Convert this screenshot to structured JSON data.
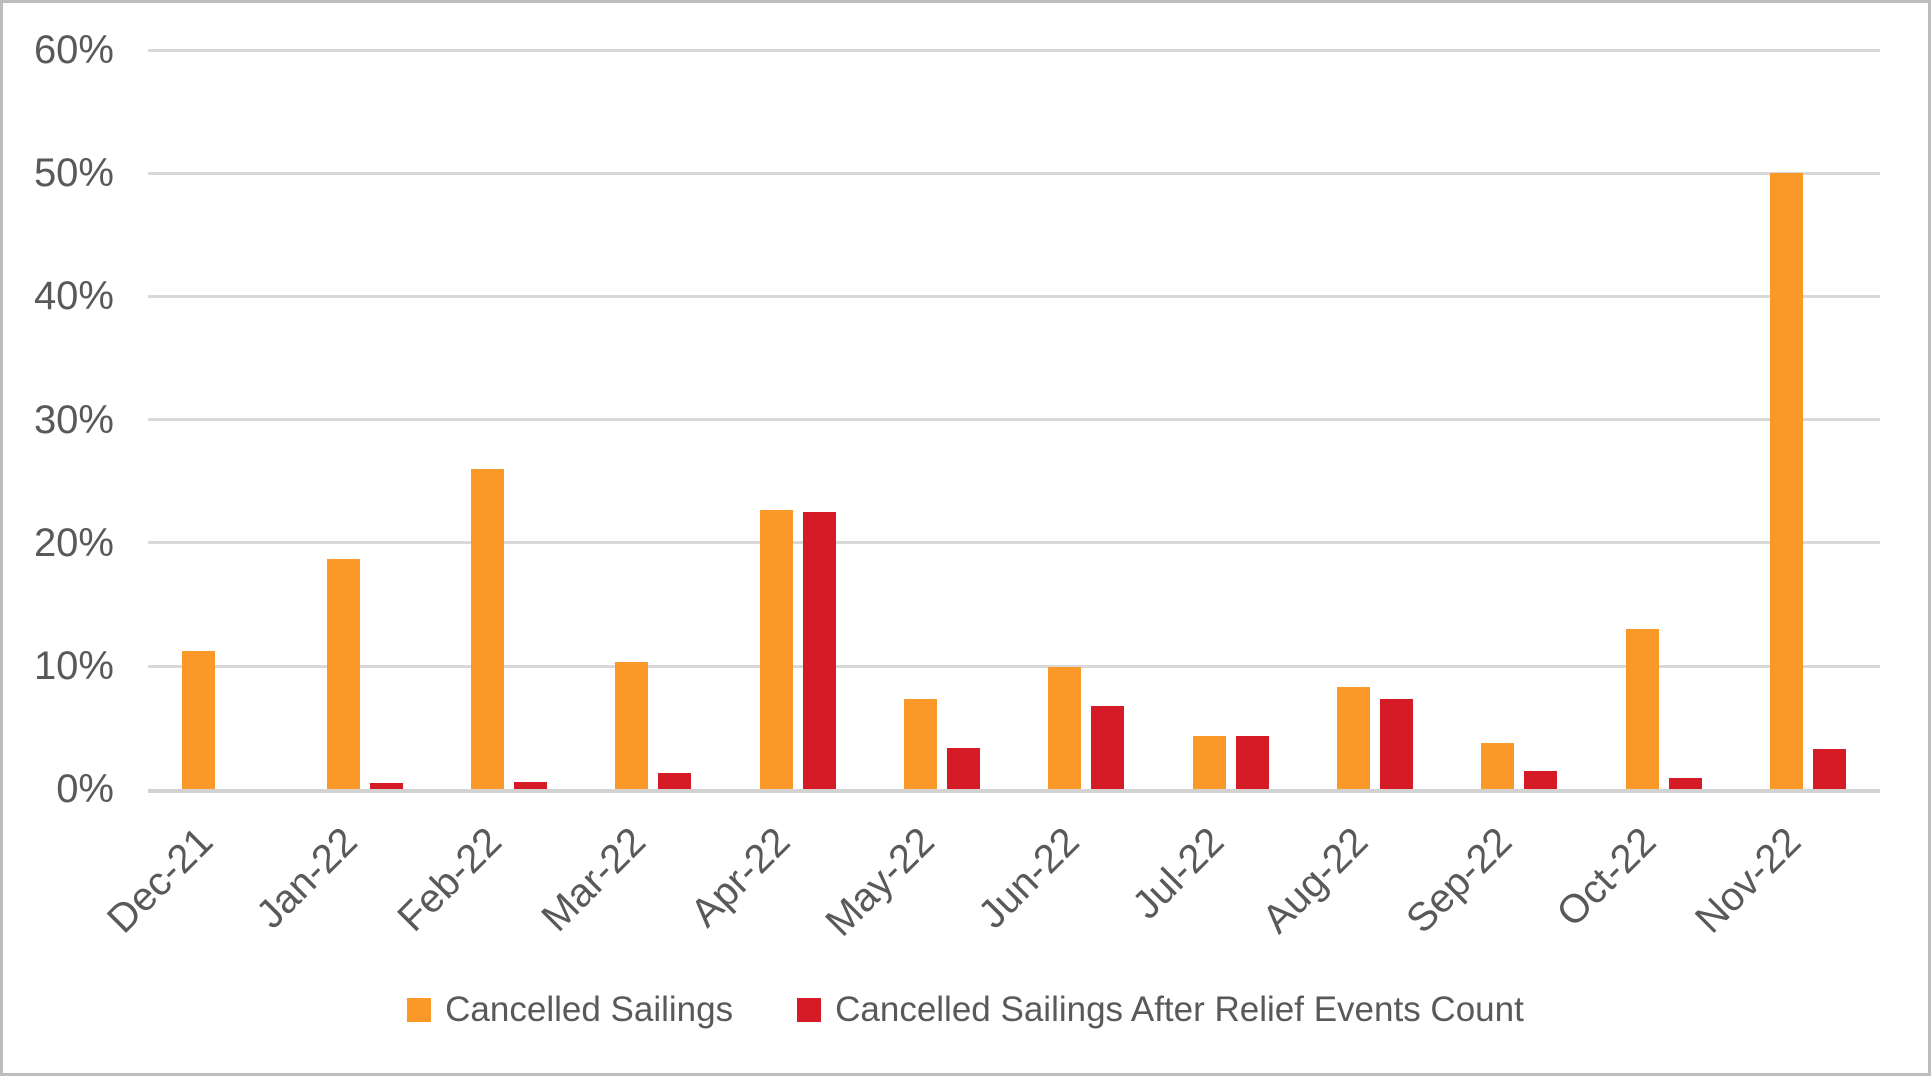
{
  "chart_data": {
    "type": "bar",
    "title": "",
    "xlabel": "",
    "ylabel": "",
    "categories": [
      "Dec-21",
      "Jan-22",
      "Feb-22",
      "Mar-22",
      "Apr-22",
      "May-22",
      "Jun-22",
      "Jul-22",
      "Aug-22",
      "Sep-22",
      "Oct-22",
      "Nov-22"
    ],
    "series": [
      {
        "name": "Cancelled Sailings",
        "color": "#FB9928",
        "values": [
          11.2,
          18.7,
          26.0,
          10.3,
          22.7,
          7.3,
          9.9,
          4.3,
          8.3,
          3.8,
          13.0,
          50.0
        ]
      },
      {
        "name": "Cancelled Sailings After Relief Events Count",
        "color": "#D41B26",
        "values": [
          0,
          0.5,
          0.6,
          1.3,
          22.5,
          3.4,
          6.8,
          4.3,
          7.3,
          1.5,
          0.9,
          3.3
        ]
      }
    ],
    "ylim": [
      0,
      60
    ],
    "ytick_step": 10,
    "ytick_labels": [
      "0%",
      "10%",
      "20%",
      "30%",
      "40%",
      "50%",
      "60%"
    ],
    "grid": true,
    "legend_position": "bottom",
    "gridline_color": "#d9d9d9",
    "axis_text_color": "#595959"
  }
}
